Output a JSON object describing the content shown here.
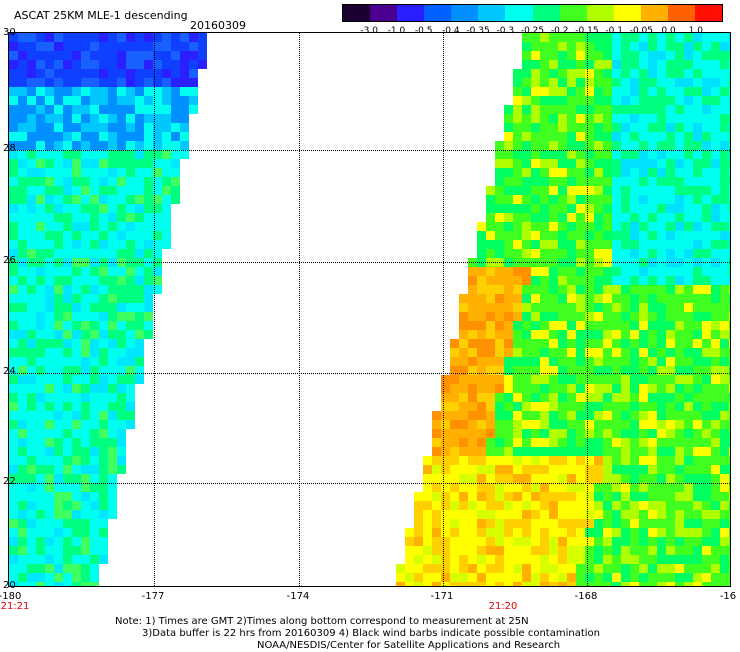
{
  "header": {
    "product_title": "ASCAT 25KM MLE-1 descending",
    "date": "20160309"
  },
  "colorbar": {
    "labels": [
      "-3.0",
      "-1.0",
      "-0.5",
      "-0.4",
      "-0.35",
      "-0.3",
      "-0.25",
      "-0.2",
      "-0.15",
      "-0.1",
      "-0.05",
      "0.0",
      "1.0"
    ],
    "colors": [
      "#1a0030",
      "#4b0090",
      "#2a20ff",
      "#0060ff",
      "#0090ff",
      "#00c8ff",
      "#00ffee",
      "#00ff80",
      "#40ff20",
      "#b0ff00",
      "#ffff00",
      "#ffb000",
      "#ff6000",
      "#ff1000"
    ]
  },
  "map": {
    "lat_labels": [
      "30",
      "28",
      "26",
      "24",
      "22",
      "20"
    ],
    "lon_labels": [
      "-180",
      "-177",
      "-174",
      "-171",
      "-168",
      "-16"
    ],
    "time_labels": [
      "21:21",
      "21:20"
    ]
  },
  "note": {
    "line1": "Note: 1) Times are GMT 2)Times along bottom correspond to measurement at 25N",
    "line2": "3)Data buffer is 22 hrs from 20160309 4) Black wind barbs indicate possible contamination",
    "line3": "NOAA/NESDIS/Center for Satellite Applications and Research"
  }
}
